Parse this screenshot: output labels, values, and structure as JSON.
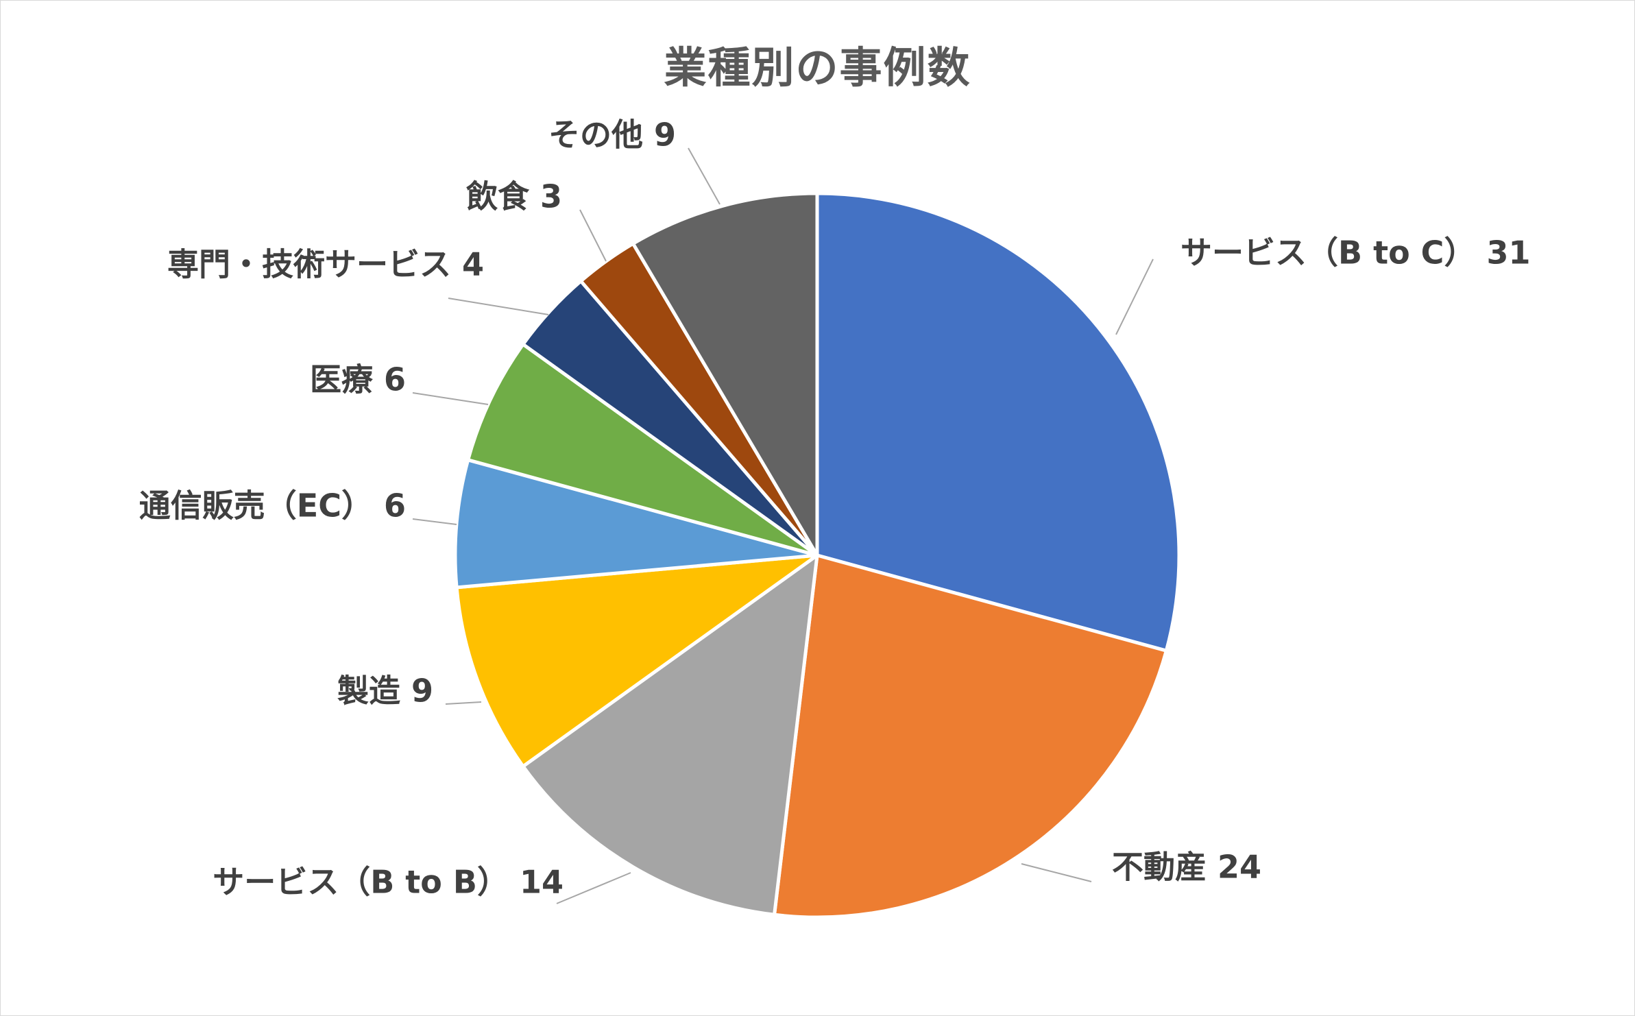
{
  "chart_data": {
    "type": "pie",
    "title": "業種別の事例数",
    "categories": [
      "サービス（B to C）",
      "不動産",
      "サービス（B to B）",
      "製造",
      "通信販売（EC）",
      "医療",
      "専門・技術サービス",
      "飲食",
      "その他"
    ],
    "values": [
      31,
      24,
      14,
      9,
      6,
      6,
      4,
      3,
      9
    ],
    "colors": [
      "#4472C4",
      "#ED7D31",
      "#A5A5A5",
      "#FFC000",
      "#5B9BD5",
      "#70AD47",
      "#264478",
      "#9E480E",
      "#636363"
    ],
    "data_labels": [
      "サービス（B to C） 31",
      "不動産 24",
      "サービス（B to B） 14",
      "製造 9",
      "通信販売（EC） 6",
      "医療 6",
      "専門・技術サービス 4",
      "飲食 3",
      "その他 9"
    ],
    "label_position": "outside-with-leader-lines",
    "legend": "none"
  }
}
